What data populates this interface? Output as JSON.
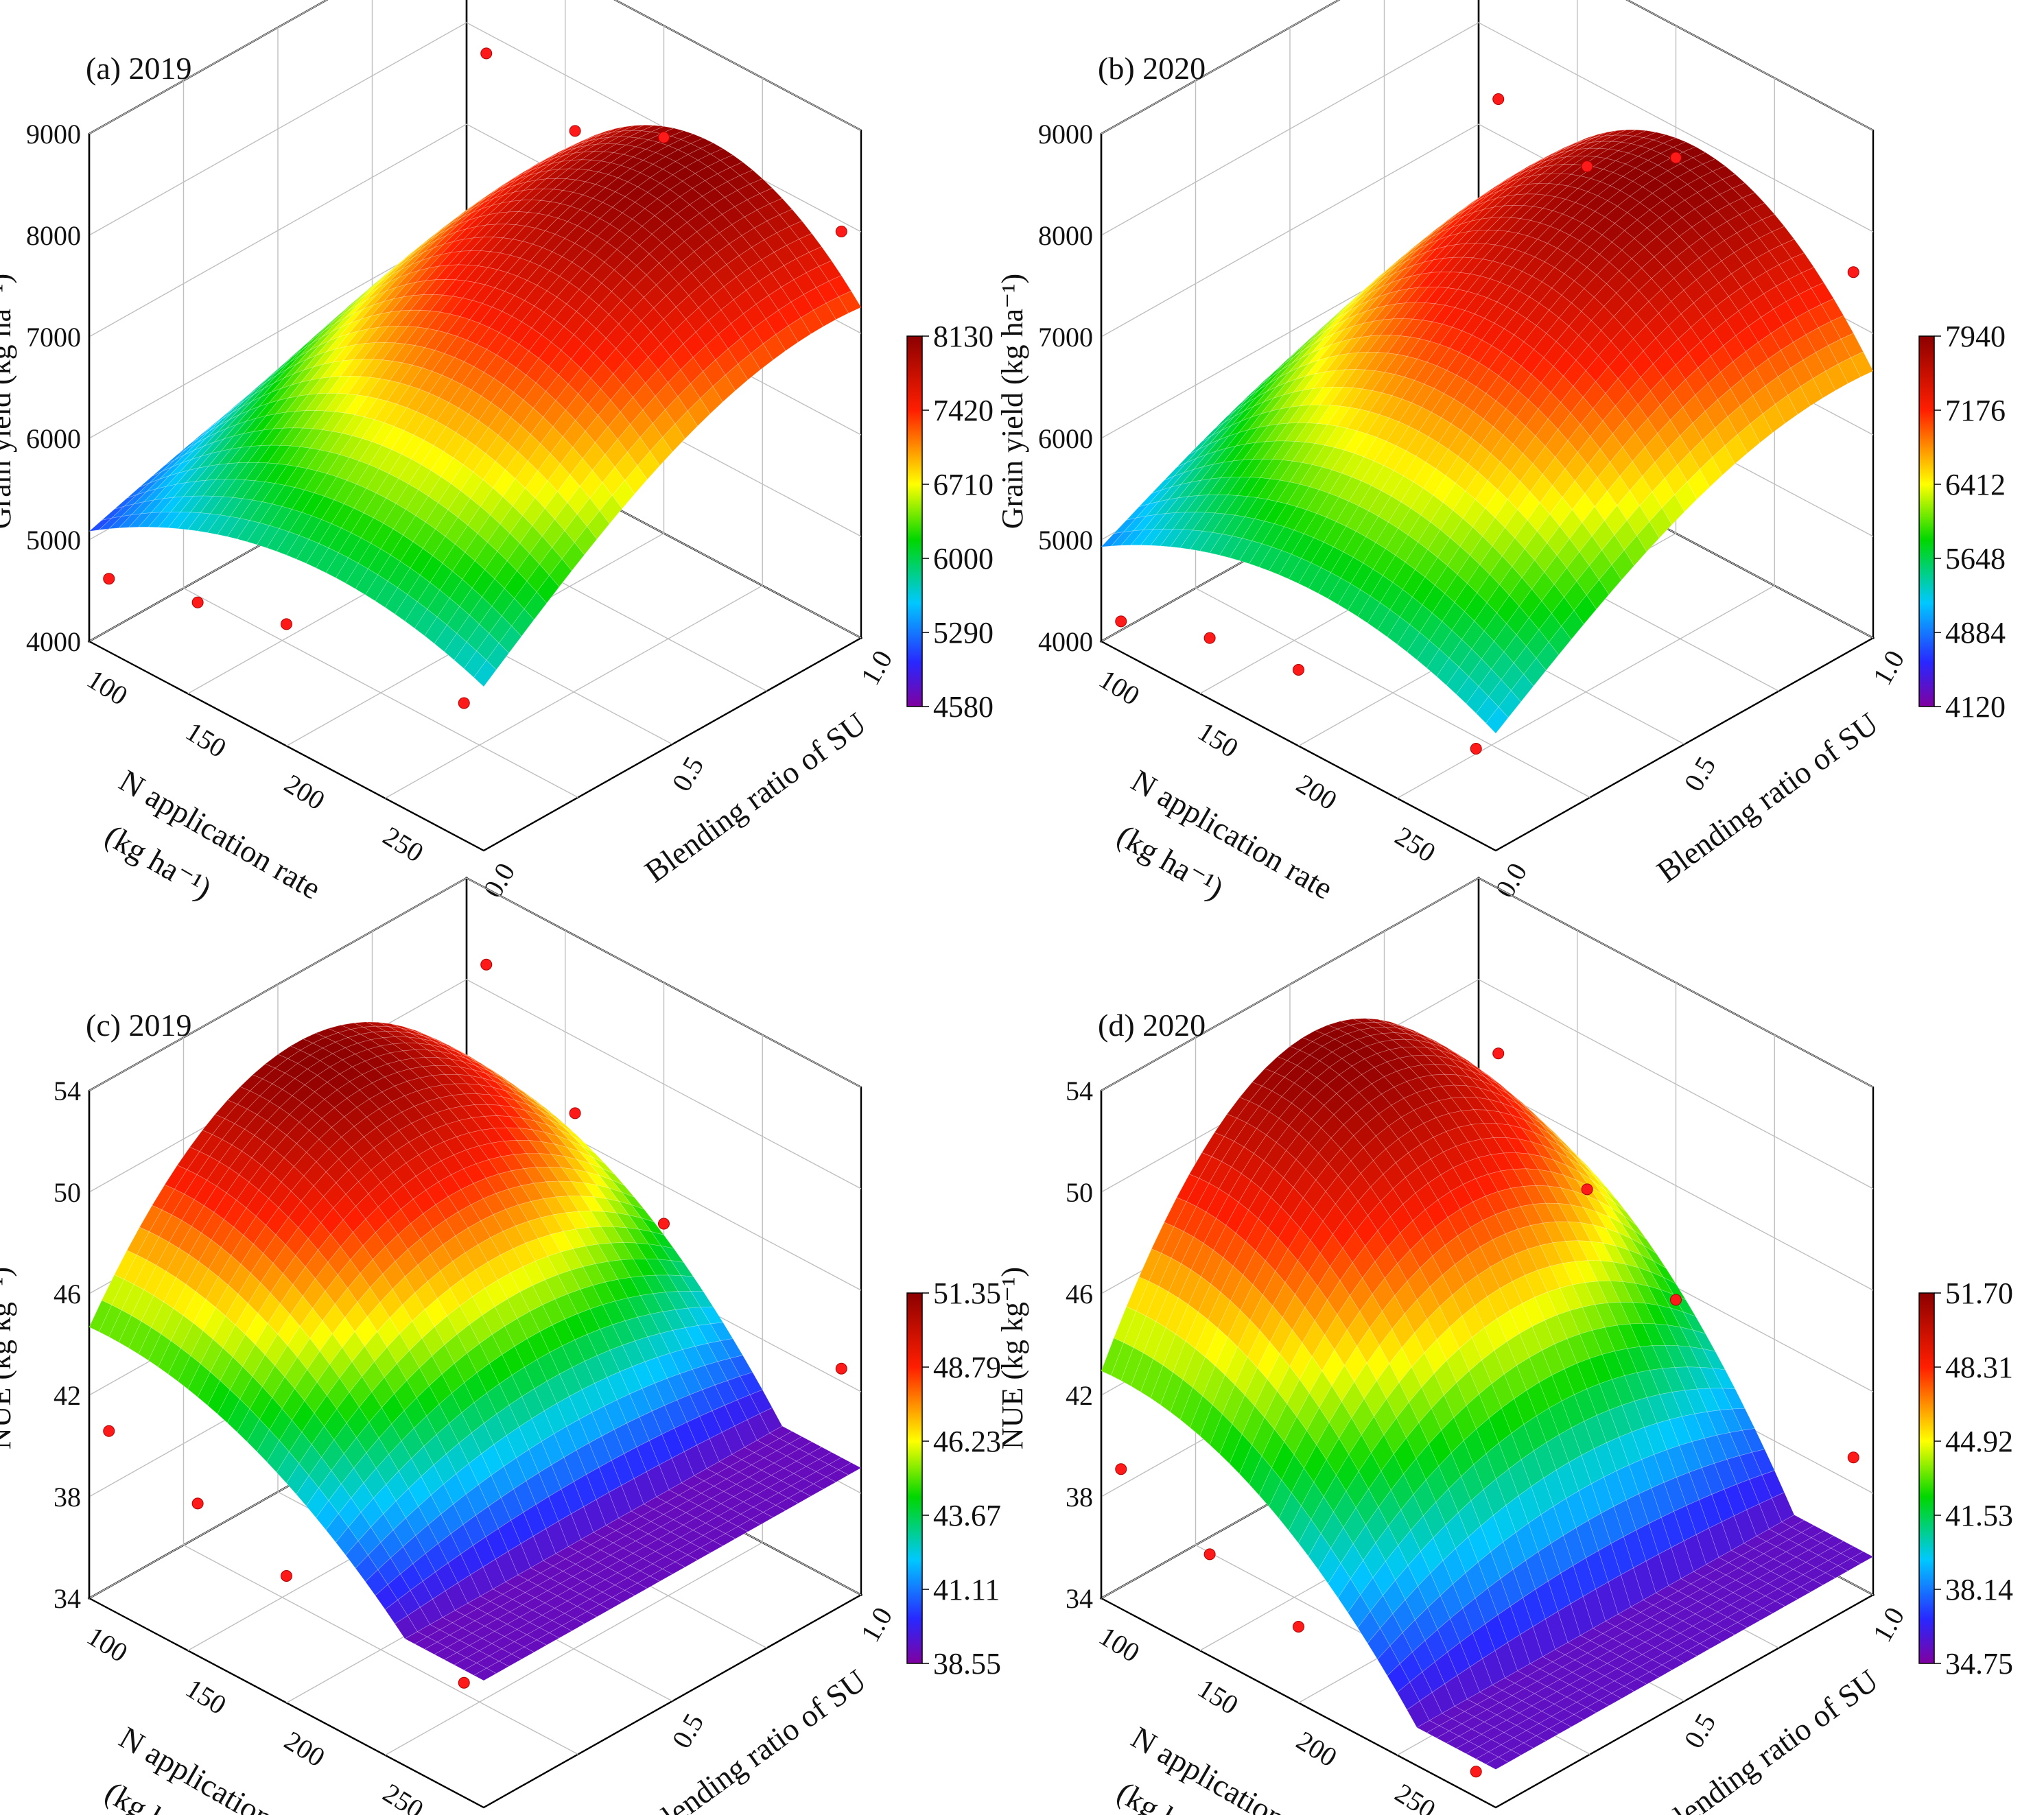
{
  "figure": {
    "x_axis_label": "N application rate",
    "x_axis_unit": "(kg ha⁻¹)",
    "y_axis_label": "Blending ratio of SU",
    "x_ticks": [
      "100",
      "150",
      "200",
      "250"
    ],
    "y_ticks": [
      "0.0",
      "0.5",
      "1.0"
    ]
  },
  "chart_data": [
    {
      "type": "surface",
      "title": "(a) 2019",
      "zlabel": "Grain yield (kg ha⁻¹)",
      "zlim": [
        4000,
        9000
      ],
      "z_ticks": [
        "4000",
        "5000",
        "6000",
        "7000",
        "8000",
        "9000"
      ],
      "colorbar_ticks": [
        "4580",
        "5290",
        "6000",
        "6710",
        "7420",
        "8130"
      ],
      "colorbar_range": [
        4580,
        8130
      ],
      "surface": {
        "base": 4720,
        "peak": 8130,
        "n_optimum": 205,
        "ratio_at_max_n": 1.0
      },
      "points": [
        {
          "n": 90,
          "ratio": 0.0,
          "value": 4720
        },
        {
          "n": 135,
          "ratio": 0.0,
          "value": 4950
        },
        {
          "n": 180,
          "ratio": 0.0,
          "value": 5200
        },
        {
          "n": 270,
          "ratio": 0.0,
          "value": 5350
        },
        {
          "n": 90,
          "ratio": 1.0,
          "value": 7800
        },
        {
          "n": 135,
          "ratio": 1.0,
          "value": 7500
        },
        {
          "n": 180,
          "ratio": 1.0,
          "value": 7900
        },
        {
          "n": 270,
          "ratio": 1.0,
          "value": 7900
        }
      ]
    },
    {
      "type": "surface",
      "title": "(b) 2020",
      "zlabel": "Grain yield (kg ha⁻¹)",
      "zlim": [
        4000,
        9000
      ],
      "z_ticks": [
        "4000",
        "5000",
        "6000",
        "7000",
        "8000",
        "9000"
      ],
      "colorbar_ticks": [
        "4120",
        "4884",
        "5648",
        "6412",
        "7176",
        "7940"
      ],
      "colorbar_range": [
        4120,
        7940
      ],
      "surface": {
        "base": 4350,
        "peak": 7940,
        "n_optimum": 190,
        "ratio_at_max_n": 1.0
      },
      "points": [
        {
          "n": 90,
          "ratio": 0.0,
          "value": 4300
        },
        {
          "n": 135,
          "ratio": 0.0,
          "value": 4600
        },
        {
          "n": 180,
          "ratio": 0.0,
          "value": 4750
        },
        {
          "n": 270,
          "ratio": 0.0,
          "value": 4900
        },
        {
          "n": 90,
          "ratio": 1.0,
          "value": 7350
        },
        {
          "n": 135,
          "ratio": 1.0,
          "value": 7150
        },
        {
          "n": 180,
          "ratio": 1.0,
          "value": 7700
        },
        {
          "n": 270,
          "ratio": 1.0,
          "value": 7500
        }
      ]
    },
    {
      "type": "surface",
      "title": "(c) 2019",
      "zlabel": "NUE (kg kg⁻¹)",
      "zlim": [
        34,
        54
      ],
      "z_ticks": [
        "34",
        "38",
        "42",
        "46",
        "50",
        "54"
      ],
      "colorbar_ticks": [
        "38.55",
        "41.11",
        "43.67",
        "46.23",
        "48.79",
        "51.35"
      ],
      "colorbar_range": [
        38.55,
        51.35
      ],
      "surface": {
        "base": 39.0,
        "peak": 51.35,
        "n_optimum": 90,
        "ratio_at_max_n": 0.5
      },
      "points": [
        {
          "n": 90,
          "ratio": 0.0,
          "value": 41.0
        },
        {
          "n": 135,
          "ratio": 0.0,
          "value": 40.0
        },
        {
          "n": 180,
          "ratio": 0.0,
          "value": 39.0
        },
        {
          "n": 270,
          "ratio": 0.0,
          "value": 38.5
        },
        {
          "n": 90,
          "ratio": 1.0,
          "value": 51.0
        },
        {
          "n": 135,
          "ratio": 1.0,
          "value": 47.0
        },
        {
          "n": 180,
          "ratio": 1.0,
          "value": 44.5
        },
        {
          "n": 270,
          "ratio": 1.0,
          "value": 42.5
        }
      ]
    },
    {
      "type": "surface",
      "title": "(d) 2020",
      "zlabel": "NUE (kg kg⁻¹)",
      "zlim": [
        34,
        54
      ],
      "z_ticks": [
        "34",
        "38",
        "42",
        "46",
        "50",
        "54"
      ],
      "colorbar_ticks": [
        "34.75",
        "38.14",
        "41.53",
        "44.92",
        "48.31",
        "51.70"
      ],
      "colorbar_range": [
        34.75,
        51.7
      ],
      "surface": {
        "base": 35.5,
        "peak": 51.7,
        "n_optimum": 90,
        "ratio_at_max_n": 0.5
      },
      "points": [
        {
          "n": 90,
          "ratio": 0.0,
          "value": 39.5
        },
        {
          "n": 135,
          "ratio": 0.0,
          "value": 38.0
        },
        {
          "n": 180,
          "ratio": 0.0,
          "value": 37.0
        },
        {
          "n": 270,
          "ratio": 0.0,
          "value": 35.0
        },
        {
          "n": 90,
          "ratio": 1.0,
          "value": 47.5
        },
        {
          "n": 135,
          "ratio": 1.0,
          "value": 44.0
        },
        {
          "n": 180,
          "ratio": 1.0,
          "value": 41.5
        },
        {
          "n": 270,
          "ratio": 1.0,
          "value": 39.0
        }
      ]
    }
  ]
}
